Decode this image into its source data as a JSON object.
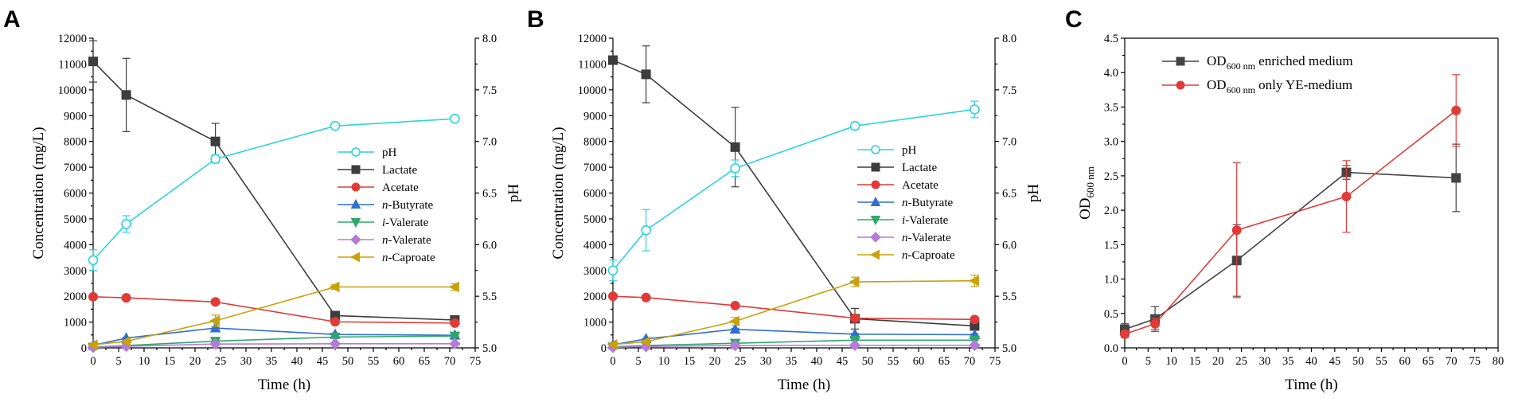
{
  "chart_data": [
    {
      "panel": "A",
      "type": "line",
      "xlabel": "Time (h)",
      "ylabel": "Concentration (mg/L)",
      "y2label": "pH",
      "xlim": [
        0,
        75
      ],
      "ylim": [
        0,
        12000
      ],
      "y2lim": [
        5.0,
        8.0
      ],
      "xticks": [
        "0",
        "5",
        "10",
        "15",
        "20",
        "25",
        "30",
        "35",
        "40",
        "45",
        "50",
        "55",
        "60",
        "65",
        "70",
        "75"
      ],
      "yticks": [
        "0",
        "1000",
        "2000",
        "3000",
        "4000",
        "5000",
        "6000",
        "7000",
        "8000",
        "9000",
        "10000",
        "11000",
        "12000"
      ],
      "y2ticks": [
        "5.0",
        "5.5",
        "6.0",
        "6.5",
        "7.0",
        "7.5",
        "8.0"
      ],
      "legend_position": "center-right",
      "series": [
        {
          "name": "pH",
          "marker": "circle-open",
          "color": "#2ad4de",
          "axis": "right",
          "x": [
            0,
            6.5,
            24,
            47.5,
            71
          ],
          "values": [
            5.85,
            6.2,
            6.83,
            7.15,
            7.22
          ],
          "errors": [
            0.1,
            0.08,
            0.04,
            0.02,
            0.02
          ]
        },
        {
          "name": "Lactate",
          "marker": "square",
          "color": "#3d3d3d",
          "axis": "left",
          "x": [
            0,
            6.5,
            24,
            47.5,
            71
          ],
          "values": [
            11100,
            9800,
            8000,
            1250,
            1080
          ],
          "errors": [
            800,
            1420,
            700,
            120,
            90
          ]
        },
        {
          "name": "Acetate",
          "marker": "circle",
          "color": "#e03b38",
          "axis": "left",
          "x": [
            0,
            6.5,
            24,
            47.5,
            71
          ],
          "values": [
            1980,
            1940,
            1780,
            1010,
            960
          ],
          "errors": [
            40,
            40,
            40,
            40,
            40
          ]
        },
        {
          "name": "n-Butyrate",
          "marker": "triangle-up",
          "color": "#2f6fcf",
          "axis": "left",
          "x": [
            0,
            6.5,
            24,
            47.5,
            71
          ],
          "values": [
            100,
            380,
            770,
            520,
            490
          ],
          "errors": [
            20,
            30,
            40,
            30,
            30
          ]
        },
        {
          "name": "i-Valerate",
          "marker": "triangle-down",
          "color": "#2ea86a",
          "axis": "left",
          "x": [
            0,
            6.5,
            24,
            47.5,
            71
          ],
          "values": [
            30,
            90,
            260,
            420,
            460
          ],
          "errors": [
            10,
            10,
            20,
            20,
            20
          ]
        },
        {
          "name": "n-Valerate",
          "marker": "diamond",
          "color": "#b47cd6",
          "axis": "left",
          "x": [
            0,
            6.5,
            24,
            47.5,
            71
          ],
          "values": [
            20,
            60,
            150,
            160,
            160
          ],
          "errors": [
            10,
            10,
            10,
            10,
            10
          ]
        },
        {
          "name": "n-Caproate",
          "marker": "triangle-left",
          "color": "#c9a10a",
          "axis": "left",
          "x": [
            0,
            6.5,
            24,
            47.5,
            71
          ],
          "values": [
            120,
            250,
            1050,
            2360,
            2360
          ],
          "errors": [
            30,
            40,
            220,
            90,
            130
          ]
        }
      ]
    },
    {
      "panel": "B",
      "type": "line",
      "xlabel": "Time (h)",
      "ylabel": "Concentration (mg/L)",
      "y2label": "pH",
      "xlim": [
        0,
        75
      ],
      "ylim": [
        0,
        12000
      ],
      "y2lim": [
        5.0,
        8.0
      ],
      "xticks": [
        "0",
        "5",
        "10",
        "15",
        "20",
        "25",
        "30",
        "35",
        "40",
        "45",
        "50",
        "55",
        "60",
        "65",
        "70",
        "75"
      ],
      "yticks": [
        "0",
        "1000",
        "2000",
        "3000",
        "4000",
        "5000",
        "6000",
        "7000",
        "8000",
        "9000",
        "10000",
        "11000",
        "12000"
      ],
      "y2ticks": [
        "5.0",
        "5.5",
        "6.0",
        "6.5",
        "7.0",
        "7.5",
        "8.0"
      ],
      "legend_position": "center-right",
      "series": [
        {
          "name": "pH",
          "marker": "circle-open",
          "color": "#2ad4de",
          "axis": "right",
          "x": [
            0,
            6.5,
            24,
            47.5,
            71
          ],
          "values": [
            5.75,
            6.14,
            6.74,
            7.15,
            7.31
          ],
          "errors": [
            0.1,
            0.2,
            0.08,
            0.03,
            0.08
          ]
        },
        {
          "name": "Lactate",
          "marker": "square",
          "color": "#3d3d3d",
          "axis": "left",
          "x": [
            0,
            6.5,
            24,
            47.5,
            71
          ],
          "values": [
            11150,
            10600,
            7780,
            1130,
            850
          ],
          "errors": [
            150,
            1100,
            1540,
            400,
            120
          ]
        },
        {
          "name": "Acetate",
          "marker": "circle",
          "color": "#e03b38",
          "axis": "left",
          "x": [
            0,
            6.5,
            24,
            47.5,
            71
          ],
          "values": [
            2000,
            1950,
            1640,
            1150,
            1100
          ],
          "errors": [
            40,
            40,
            40,
            40,
            40
          ]
        },
        {
          "name": "n-Butyrate",
          "marker": "triangle-up",
          "color": "#2f6fcf",
          "axis": "left",
          "x": [
            0,
            6.5,
            24,
            47.5,
            71
          ],
          "values": [
            120,
            350,
            720,
            530,
            510
          ],
          "errors": [
            20,
            30,
            40,
            30,
            30
          ]
        },
        {
          "name": "i-Valerate",
          "marker": "triangle-down",
          "color": "#2ea86a",
          "axis": "left",
          "x": [
            0,
            6.5,
            24,
            47.5,
            71
          ],
          "values": [
            40,
            90,
            180,
            300,
            300
          ],
          "errors": [
            10,
            10,
            20,
            20,
            20
          ]
        },
        {
          "name": "n-Valerate",
          "marker": "diamond",
          "color": "#b47cd6",
          "axis": "left",
          "x": [
            0,
            6.5,
            24,
            47.5,
            71
          ],
          "values": [
            20,
            50,
            90,
            100,
            100
          ],
          "errors": [
            10,
            10,
            10,
            10,
            10
          ]
        },
        {
          "name": "n-Caproate",
          "marker": "triangle-left",
          "color": "#c9a10a",
          "axis": "left",
          "x": [
            0,
            6.5,
            24,
            47.5,
            71
          ],
          "values": [
            130,
            240,
            1030,
            2560,
            2600
          ],
          "errors": [
            30,
            40,
            150,
            180,
            220
          ]
        }
      ]
    },
    {
      "panel": "C",
      "type": "line",
      "xlabel": "Time (h)",
      "ylabel": "OD",
      "ylabel_sub": "600 nm",
      "xlim": [
        0,
        80
      ],
      "ylim": [
        0,
        4.5
      ],
      "xticks": [
        "0",
        "5",
        "10",
        "15",
        "20",
        "25",
        "30",
        "35",
        "40",
        "45",
        "50",
        "55",
        "60",
        "65",
        "70",
        "75",
        "80"
      ],
      "yticks": [
        "0.0",
        "0.5",
        "1.0",
        "1.5",
        "2.0",
        "2.5",
        "3.0",
        "3.5",
        "4.0",
        "4.5"
      ],
      "legend_position": "top-left",
      "series": [
        {
          "name": "OD",
          "name_sub": "600 nm",
          "name_suffix": " enriched medium",
          "marker": "square",
          "color": "#444444",
          "x": [
            0,
            6.5,
            24,
            47.5,
            71
          ],
          "values": [
            0.27,
            0.42,
            1.27,
            2.55,
            2.47
          ],
          "errors": [
            0.08,
            0.18,
            0.52,
            0.1,
            0.49
          ]
        },
        {
          "name": "OD",
          "name_sub": "600 nm",
          "name_suffix": " only YE-medium",
          "marker": "circle",
          "color": "#e03b38",
          "x": [
            0,
            6.5,
            24,
            47.5,
            71
          ],
          "values": [
            0.2,
            0.35,
            1.71,
            2.2,
            3.45
          ],
          "errors": [
            0.05,
            0.08,
            0.98,
            0.52,
            0.52
          ]
        }
      ]
    }
  ]
}
